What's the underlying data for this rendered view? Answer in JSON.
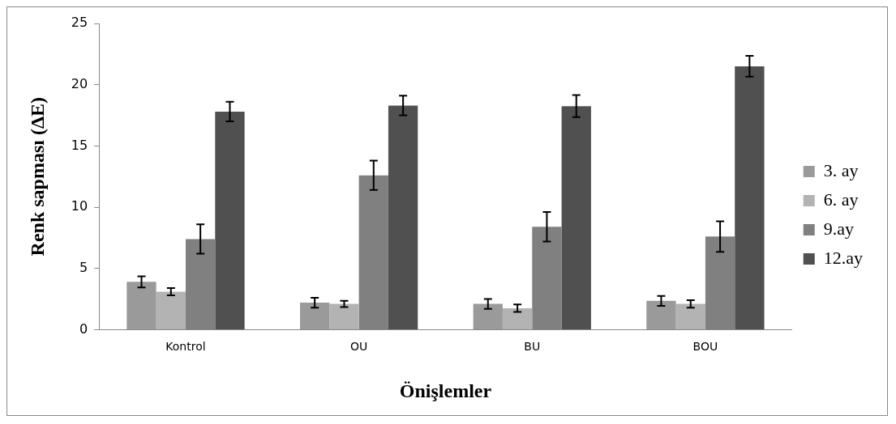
{
  "chart_data": {
    "type": "bar",
    "xlabel": "Önişlemler",
    "ylabel": "Renk sapması (ΔE)",
    "categories": [
      "Kontrol",
      "OU",
      "BU",
      "BOU"
    ],
    "series": [
      {
        "name": "3. ay",
        "color": "#9a9a9a",
        "values": [
          3.9,
          2.2,
          2.1,
          2.35
        ],
        "errors": [
          0.45,
          0.4,
          0.4,
          0.4
        ]
      },
      {
        "name": "6. ay",
        "color": "#b3b3b3",
        "values": [
          3.1,
          2.1,
          1.75,
          2.1
        ],
        "errors": [
          0.3,
          0.25,
          0.3,
          0.3
        ]
      },
      {
        "name": "9.ay",
        "color": "#808080",
        "values": [
          7.4,
          12.6,
          8.4,
          7.6
        ],
        "errors": [
          1.2,
          1.2,
          1.2,
          1.25
        ]
      },
      {
        "name": "12.ay",
        "color": "#505050",
        "values": [
          17.8,
          18.3,
          18.25,
          21.5
        ],
        "errors": [
          0.8,
          0.8,
          0.9,
          0.85
        ]
      }
    ],
    "ylim": [
      0,
      25
    ],
    "yticks": [
      0,
      5,
      10,
      15,
      20,
      25
    ],
    "grid": false,
    "legend": "right"
  }
}
